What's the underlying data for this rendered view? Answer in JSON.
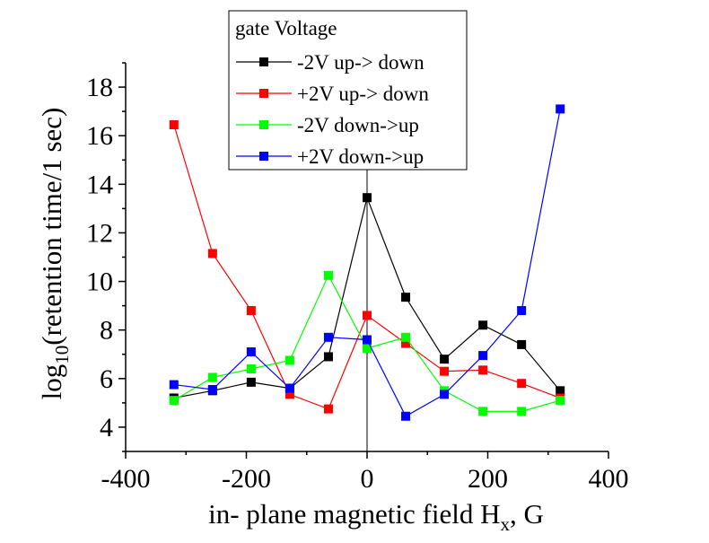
{
  "chart_data": {
    "type": "line",
    "xlabel": {
      "main": "in- plane magnetic field H",
      "sub": "x",
      "tail": ", G"
    },
    "ylabel": {
      "main": "log",
      "sub": "10",
      "tail": "(retention time/1 sec)"
    },
    "xlim": [
      -400,
      400
    ],
    "ylim": [
      3,
      19
    ],
    "x_ticks": [
      -400,
      -200,
      0,
      200,
      400
    ],
    "x_tick_labels": [
      "-400",
      "-200",
      "0",
      "200",
      "400"
    ],
    "y_ticks": [
      4,
      6,
      8,
      10,
      12,
      14,
      16,
      18
    ],
    "y_tick_labels": [
      "4",
      "6",
      "8",
      "10",
      "12",
      "14",
      "16",
      "18"
    ],
    "grid": false,
    "zero_line": true,
    "legend": {
      "title": "gate Voltage",
      "placement": "top-center"
    },
    "x": [
      -320,
      -256,
      -192,
      -128,
      -64,
      0,
      64,
      128,
      192,
      256,
      320
    ],
    "series": [
      {
        "name": "-2V up-> down",
        "color": "#000000",
        "values": [
          5.2,
          5.5,
          5.85,
          5.6,
          6.9,
          13.45,
          9.35,
          6.8,
          8.2,
          7.4,
          5.5
        ]
      },
      {
        "name": "+2V up-> down",
        "color": "#ff0000",
        "values": [
          16.45,
          11.15,
          8.8,
          5.35,
          4.75,
          8.6,
          7.45,
          6.3,
          6.35,
          5.8,
          5.2
        ]
      },
      {
        "name": "-2V down->up",
        "color": "#00ff00",
        "values": [
          5.1,
          6.05,
          6.4,
          6.75,
          10.25,
          7.25,
          7.7,
          5.5,
          4.65,
          4.65,
          5.1
        ]
      },
      {
        "name": "+2V down->up",
        "color": "#0000ff",
        "values": [
          5.75,
          5.55,
          7.1,
          5.6,
          7.7,
          7.6,
          4.45,
          5.35,
          6.95,
          8.8,
          17.1
        ]
      }
    ]
  }
}
